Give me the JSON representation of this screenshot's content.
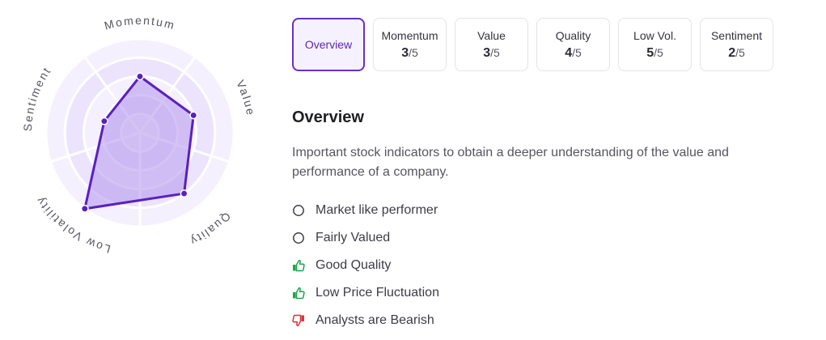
{
  "radar": {
    "axes": [
      {
        "label": "Momentum",
        "score": 3
      },
      {
        "label": "Value",
        "score": 3
      },
      {
        "label": "Quality",
        "score": 4
      },
      {
        "label": "Low Volatility",
        "score": 5
      },
      {
        "label": "Sentiment",
        "score": 2
      }
    ],
    "max_score": 5,
    "colors": {
      "ring_light": "#f5f0fe",
      "ring_dark": "#ece3fd",
      "grid": "#ffffff",
      "fill": "#b79bec",
      "stroke": "#5a1fc2",
      "label": "#55555f"
    }
  },
  "tabs": [
    {
      "label": "Overview",
      "active": true
    },
    {
      "label": "Momentum",
      "score": "3",
      "max": "/5"
    },
    {
      "label": "Value",
      "score": "3",
      "max": "/5"
    },
    {
      "label": "Quality",
      "score": "4",
      "max": "/5"
    },
    {
      "label": "Low Vol.",
      "score": "5",
      "max": "/5"
    },
    {
      "label": "Sentiment",
      "score": "2",
      "max": "/5"
    }
  ],
  "overview": {
    "title": "Overview",
    "description": "Important stock indicators to obtain a deeper understanding of the value and performance of a company."
  },
  "indicators": [
    {
      "text": "Market like performer",
      "icon": "circle-icon"
    },
    {
      "text": "Fairly Valued",
      "icon": "circle-icon"
    },
    {
      "text": "Good Quality",
      "icon": "thumbs-up-icon"
    },
    {
      "text": "Low Price Fluctuation",
      "icon": "thumbs-up-icon"
    },
    {
      "text": "Analysts are Bearish",
      "icon": "thumbs-down-icon"
    }
  ],
  "icon_colors": {
    "positive": "#1aa64a",
    "negative": "#e0303e",
    "neutral": "#3c3c46"
  }
}
